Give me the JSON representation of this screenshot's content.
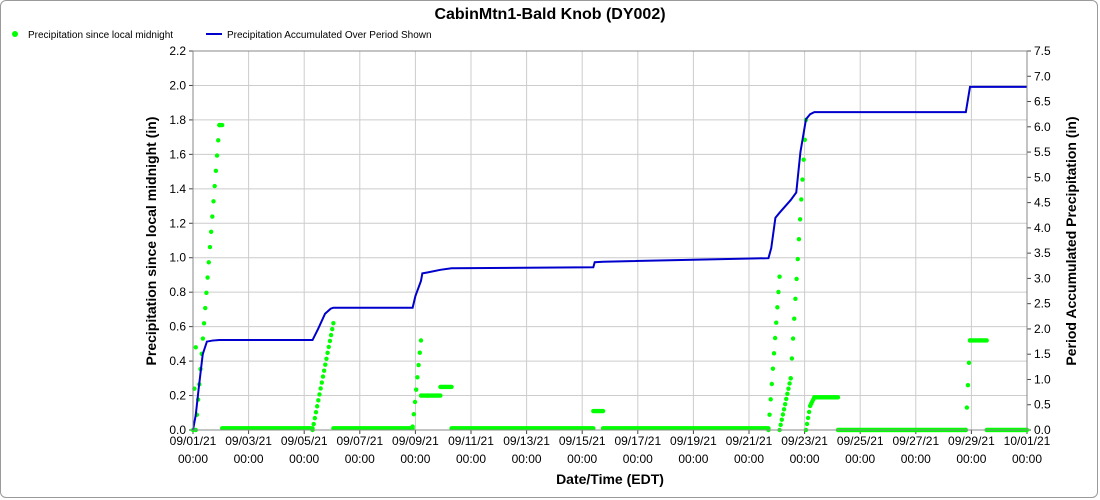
{
  "chart_data": {
    "type": "line",
    "title": "CabinMtn1-Bald Knob (DY002)",
    "xlabel": "Date/Time (EDT)",
    "ylabel_left": "Precipitation since local midnight (in)",
    "ylabel_right": "Period Accumulated Precipitation (in)",
    "xlim": [
      "09/01/21 00:00",
      "10/01/21 00:00"
    ],
    "ylim_left": [
      0,
      2.2
    ],
    "ylim_right": [
      0,
      7.5
    ],
    "x_ticks": [
      {
        "date": "09/01/21",
        "time": "00:00",
        "day": 0
      },
      {
        "date": "09/03/21",
        "time": "00:00",
        "day": 2
      },
      {
        "date": "09/05/21",
        "time": "00:00",
        "day": 4
      },
      {
        "date": "09/07/21",
        "time": "00:00",
        "day": 6
      },
      {
        "date": "09/09/21",
        "time": "00:00",
        "day": 8
      },
      {
        "date": "09/11/21",
        "time": "00:00",
        "day": 10
      },
      {
        "date": "09/13/21",
        "time": "00:00",
        "day": 12
      },
      {
        "date": "09/15/21",
        "time": "00:00",
        "day": 14
      },
      {
        "date": "09/17/21",
        "time": "00:00",
        "day": 16
      },
      {
        "date": "09/19/21",
        "time": "00:00",
        "day": 18
      },
      {
        "date": "09/21/21",
        "time": "00:00",
        "day": 20
      },
      {
        "date": "09/23/21",
        "time": "00:00",
        "day": 22
      },
      {
        "date": "09/25/21",
        "time": "00:00",
        "day": 24
      },
      {
        "date": "09/27/21",
        "time": "00:00",
        "day": 26
      },
      {
        "date": "09/29/21",
        "time": "00:00",
        "day": 28
      },
      {
        "date": "10/01/21",
        "time": "00:00",
        "day": 30
      }
    ],
    "y_ticks_left": [
      "0.0",
      "0.2",
      "0.4",
      "0.6",
      "0.8",
      "1.0",
      "1.2",
      "1.4",
      "1.6",
      "1.8",
      "2.0",
      "2.2"
    ],
    "y_ticks_right": [
      "0.0",
      "0.5",
      "1.0",
      "1.5",
      "2.0",
      "2.5",
      "3.0",
      "3.5",
      "4.0",
      "4.5",
      "5.0",
      "5.5",
      "6.0",
      "6.5",
      "7.0",
      "7.5"
    ],
    "grid": true,
    "legend_position": "top-left",
    "series": [
      {
        "name": "Precipitation since local midnight",
        "kind": "scatter",
        "axis": "left",
        "color": "#00ff00",
        "segments": [
          {
            "start": 0.0,
            "end": 0.1,
            "from": 0.0,
            "to": 0.48
          },
          {
            "start": 0.1,
            "end": 0.95,
            "from": 0.0,
            "to": 1.77
          },
          {
            "start": 0.95,
            "end": 1.05,
            "from": 1.77,
            "to": 1.77
          },
          {
            "start": 1.05,
            "end": 4.3,
            "from": 0.01,
            "to": 0.01
          },
          {
            "start": 4.3,
            "end": 5.05,
            "from": 0.0,
            "to": 0.62
          },
          {
            "start": 5.05,
            "end": 7.9,
            "from": 0.01,
            "to": 0.01
          },
          {
            "start": 7.9,
            "end": 8.2,
            "from": 0.02,
            "to": 0.52
          },
          {
            "start": 8.2,
            "end": 8.45,
            "from": 0.2,
            "to": 0.2
          },
          {
            "start": 8.45,
            "end": 8.9,
            "from": 0.2,
            "to": 0.2
          },
          {
            "start": 8.9,
            "end": 9.3,
            "from": 0.25,
            "to": 0.25
          },
          {
            "start": 9.3,
            "end": 14.4,
            "from": 0.01,
            "to": 0.01
          },
          {
            "start": 14.4,
            "end": 14.75,
            "from": 0.11,
            "to": 0.11
          },
          {
            "start": 14.75,
            "end": 20.7,
            "from": 0.01,
            "to": 0.01
          },
          {
            "start": 20.7,
            "end": 21.1,
            "from": 0.0,
            "to": 0.89
          },
          {
            "start": 21.1,
            "end": 21.5,
            "from": 0.0,
            "to": 0.3
          },
          {
            "start": 21.5,
            "end": 22.05,
            "from": 0.3,
            "to": 1.8
          },
          {
            "start": 22.05,
            "end": 22.2,
            "from": 0.0,
            "to": 0.14
          },
          {
            "start": 22.2,
            "end": 22.35,
            "from": 0.14,
            "to": 0.19
          },
          {
            "start": 22.35,
            "end": 23.2,
            "from": 0.19,
            "to": 0.19
          },
          {
            "start": 23.2,
            "end": 27.8,
            "from": 0.0,
            "to": 0.0
          },
          {
            "start": 27.8,
            "end": 27.95,
            "from": 0.0,
            "to": 0.52
          },
          {
            "start": 27.95,
            "end": 28.55,
            "from": 0.52,
            "to": 0.52
          },
          {
            "start": 28.55,
            "end": 30.0,
            "from": 0.0,
            "to": 0.0
          }
        ]
      },
      {
        "name": "Precipitation Accumulated Over Period Shown",
        "kind": "line",
        "axis": "right",
        "color": "#0000cc",
        "x": [
          0,
          0.1,
          0.2,
          0.35,
          0.5,
          0.7,
          0.95,
          1.05,
          4.3,
          4.5,
          4.75,
          4.95,
          5.05,
          7.9,
          8.0,
          8.2,
          8.25,
          8.45,
          8.9,
          9.3,
          14.4,
          14.45,
          14.75,
          20.7,
          20.8,
          20.95,
          21.1,
          21.5,
          21.7,
          21.85,
          22.05,
          22.2,
          22.35,
          27.8,
          27.95,
          30.0
        ],
        "y": [
          0,
          0.3,
          0.8,
          1.5,
          1.75,
          1.77,
          1.78,
          1.78,
          1.78,
          2.0,
          2.3,
          2.4,
          2.42,
          2.42,
          2.65,
          2.95,
          3.1,
          3.12,
          3.17,
          3.2,
          3.22,
          3.32,
          3.33,
          3.4,
          3.6,
          4.2,
          4.3,
          4.55,
          4.7,
          5.5,
          6.15,
          6.25,
          6.29,
          6.29,
          6.79,
          6.79
        ]
      }
    ]
  }
}
